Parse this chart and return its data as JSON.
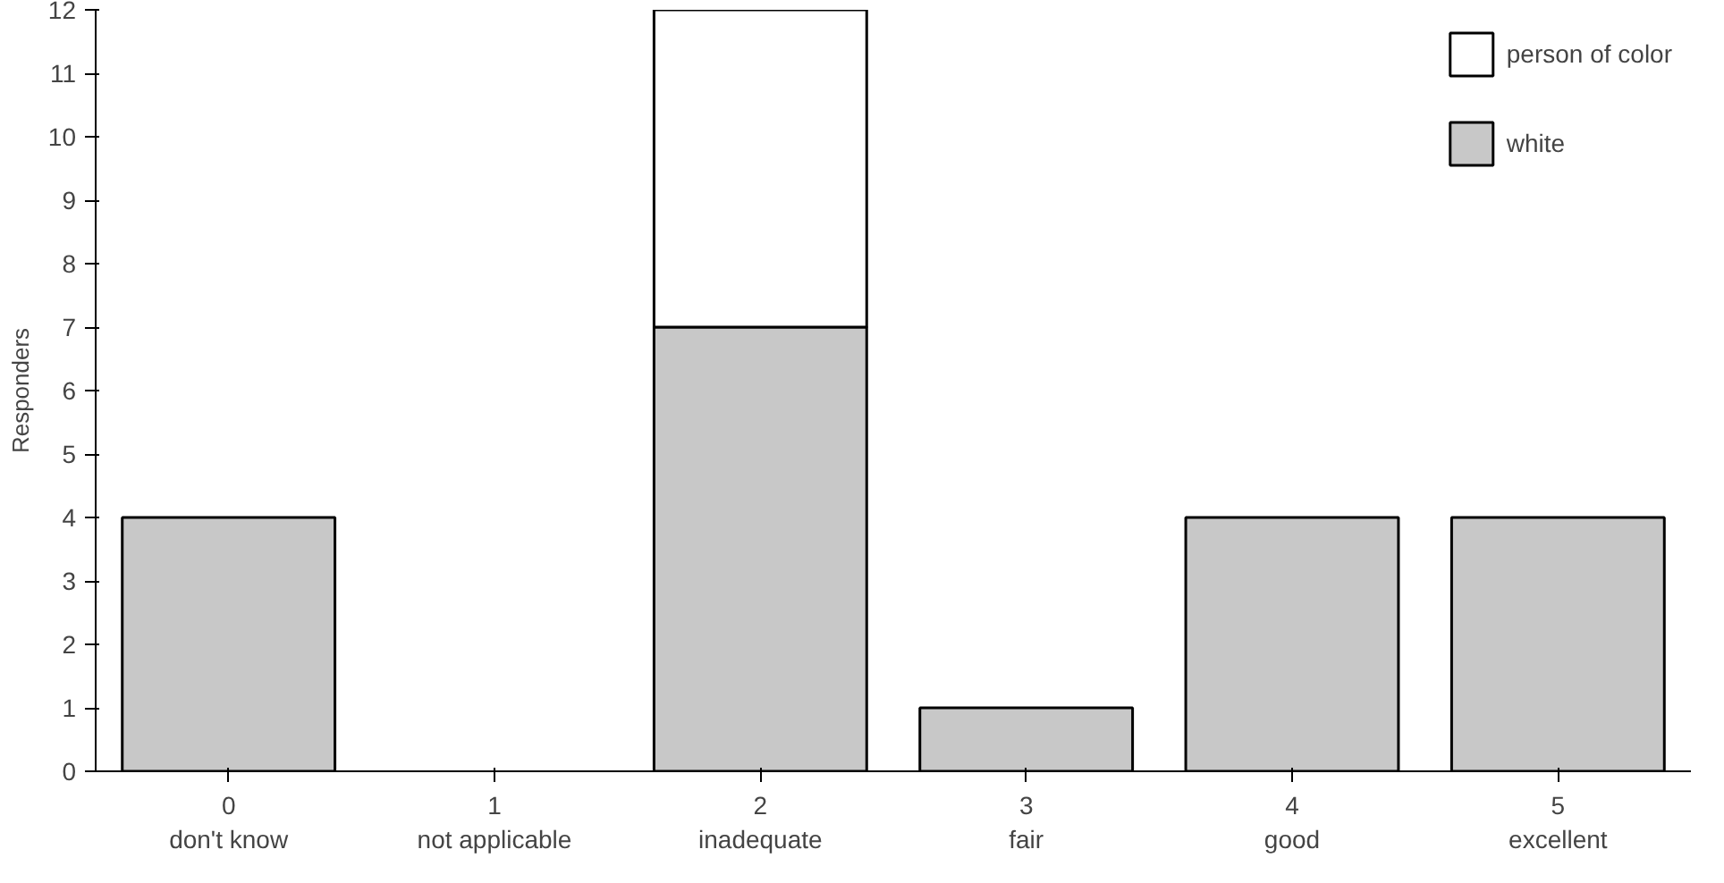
{
  "chart_data": {
    "type": "bar",
    "ylabel": "Responders",
    "categories": [
      "0\ndon't know",
      "1\nnot applicable",
      "2\ninadequate",
      "3\nfair",
      "4\ngood",
      "5\nexcellent"
    ],
    "stacked": true,
    "series": [
      {
        "name": "white",
        "color": "#c8c8c8",
        "values": [
          4,
          0,
          7,
          1,
          4,
          4
        ]
      },
      {
        "name": "person of color",
        "color": "#ffffff",
        "values": [
          0,
          0,
          5,
          0,
          0,
          0
        ]
      }
    ],
    "ylim": [
      0,
      12
    ],
    "yticks": [
      0,
      1,
      2,
      3,
      4,
      5,
      6,
      7,
      8,
      9,
      10,
      11,
      12
    ],
    "grid": false,
    "legend": "top right"
  }
}
